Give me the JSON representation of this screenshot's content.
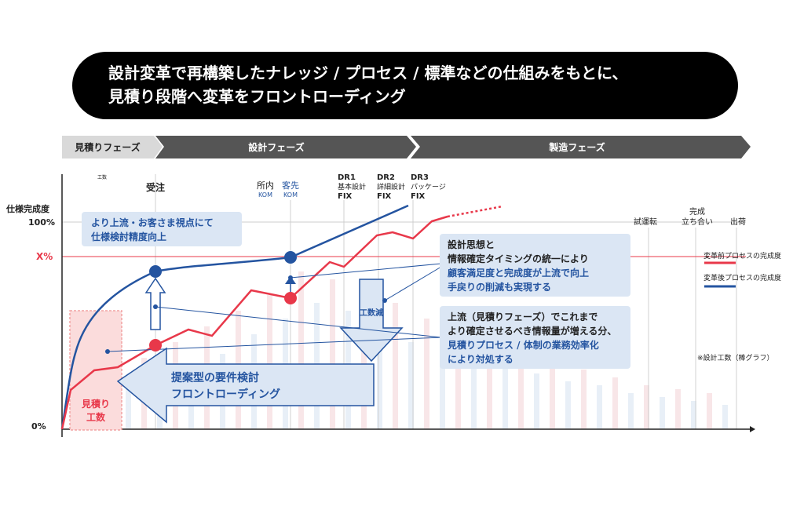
{
  "banner": {
    "line1": "設計変革で再構築したナレッジ / プロセス / 標準などの仕組みをもとに、",
    "line2": "見積り段階へ変革をフロントローディング"
  },
  "phases": [
    "見積りフェーズ",
    "設計フェーズ",
    "製造フェーズ"
  ],
  "axis": {
    "y_title": "仕様完成度",
    "y_100": "100%",
    "y_x": "X%",
    "y_0": "0%",
    "small_label": "工数"
  },
  "milestones": {
    "order": "受注",
    "internal": "所内",
    "internal_sub": "KOM",
    "client": "客先",
    "client_sub": "KOM",
    "dr1": [
      "DR1",
      "基本設計",
      "FIX"
    ],
    "dr2": [
      "DR2",
      "詳細設計",
      "FIX"
    ],
    "dr3": [
      "DR3",
      "パッケージ",
      "FIX"
    ],
    "trial": "試運転",
    "complete": [
      "完成",
      "立ち合い"
    ],
    "ship": "出荷"
  },
  "legend": {
    "before": "変革前プロセスの完成度",
    "after": "変革後プロセスの完成度",
    "note": "※設計工数（棒グラフ）",
    "before_color": "#e8384a",
    "after_color": "#2454a0"
  },
  "callouts": {
    "upstream": [
      "より上流・お客さま視点にて",
      "仕様検討精度向上"
    ],
    "design_thought": [
      "設計思想と",
      "情報確定タイミングの統一により",
      "顧客満足度と完成度が上流で向上",
      "手戻りの削減も実現する"
    ],
    "upstream_phase": [
      "上流（見積りフェーズ）でこれまで",
      "より確定させるべき情報量が増える分、",
      "見積りプロセス / 体制の業務効率化",
      "により対処する"
    ],
    "reduce": "工数減",
    "proposal": [
      "提案型の要件検討",
      "フロントローディング"
    ],
    "estimate": [
      "見積り",
      "工数"
    ]
  }
}
